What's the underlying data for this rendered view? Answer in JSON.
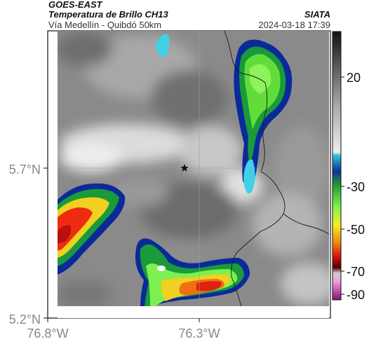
{
  "header": {
    "satellite": "GOES-EAST",
    "product": "Temperatura de Brillo CH13",
    "region": "Vía Medellín - Quibdó 50km",
    "agency": "SIATA",
    "datetime": "2024-03-18 17:39"
  },
  "axes": {
    "y_ticks": [
      "5.7°N",
      "5.2°N"
    ],
    "x_ticks": [
      "76.8°W",
      "76.3°W"
    ]
  },
  "colorbar": {
    "ticks": [
      "20",
      "-30",
      "-50",
      "-70",
      "-90"
    ]
  },
  "colors": {
    "cold_top": "#1a9a3a",
    "core": "#ee2a10",
    "edge": "#0a2a9a",
    "cyan": "#40d0e8"
  },
  "marker_icon": "star-icon"
}
